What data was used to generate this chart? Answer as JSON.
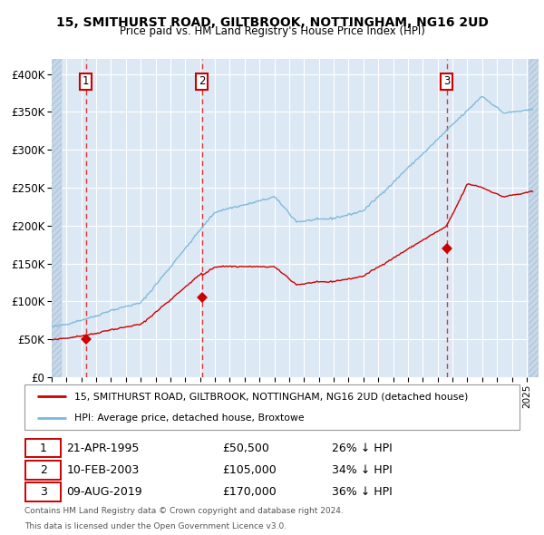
{
  "title": "15, SMITHURST ROAD, GILTBROOK, NOTTINGHAM, NG16 2UD",
  "subtitle": "Price paid vs. HM Land Registry's House Price Index (HPI)",
  "plot_bg_color": "#dce9f5",
  "grid_color": "#ffffff",
  "red_line_color": "#cc0000",
  "blue_line_color": "#7ab8d9",
  "dashed_line_color": "#dd3333",
  "ylim": [
    0,
    420000
  ],
  "yticks": [
    0,
    50000,
    100000,
    150000,
    200000,
    250000,
    300000,
    350000,
    400000
  ],
  "ytick_labels": [
    "£0",
    "£50K",
    "£100K",
    "£150K",
    "£200K",
    "£250K",
    "£300K",
    "£350K",
    "£400K"
  ],
  "xlim_start": 1993.0,
  "xlim_end": 2025.8,
  "transactions": [
    {
      "date_label": "21-APR-1995",
      "year": 1995.3,
      "price": 50500,
      "label": "1",
      "hpi_pct": "26% ↓ HPI"
    },
    {
      "date_label": "10-FEB-2003",
      "year": 2003.12,
      "price": 105000,
      "label": "2",
      "hpi_pct": "34% ↓ HPI"
    },
    {
      "date_label": "09-AUG-2019",
      "year": 2019.61,
      "price": 170000,
      "label": "3",
      "hpi_pct": "36% ↓ HPI"
    }
  ],
  "footer_line1": "Contains HM Land Registry data © Crown copyright and database right 2024.",
  "footer_line2": "This data is licensed under the Open Government Licence v3.0.",
  "legend_line1": "15, SMITHURST ROAD, GILTBROOK, NOTTINGHAM, NG16 2UD (detached house)",
  "legend_line2": "HPI: Average price, detached house, Broxtowe"
}
